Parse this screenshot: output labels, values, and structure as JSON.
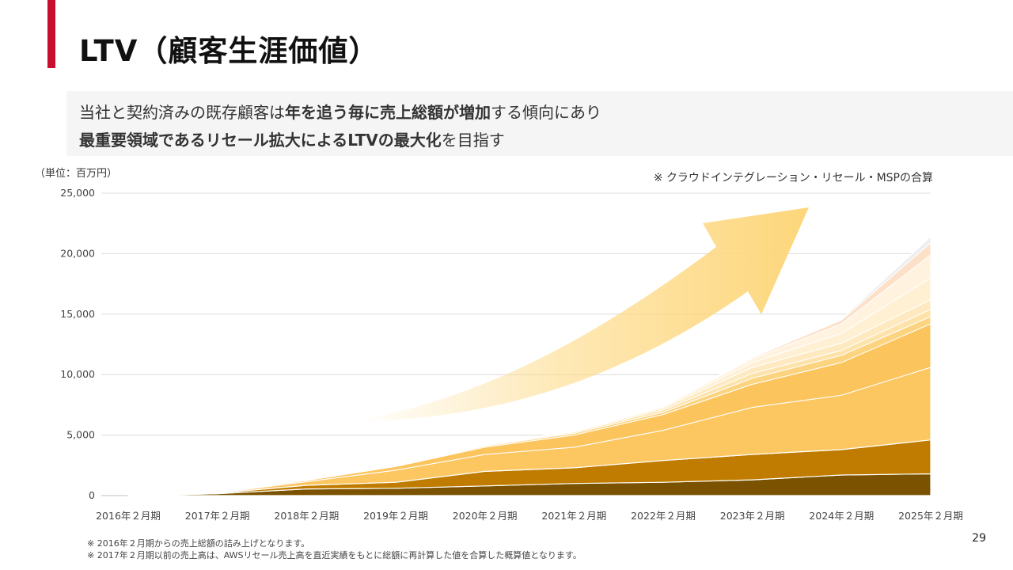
{
  "header": {
    "title": "LTV（顧客生涯価値）"
  },
  "lead": {
    "line1": [
      {
        "text": "当社と契約済みの既存顧客は",
        "bold": false
      },
      {
        "text": "年を追う毎に売上総額が増加",
        "bold": true
      },
      {
        "text": "する傾向にあり",
        "bold": false
      }
    ],
    "line2": [
      {
        "text": "最重要領域であるリセール拡大によるLTVの最大化",
        "bold": true
      },
      {
        "text": "を目指す",
        "bold": false
      }
    ]
  },
  "unit_label": "（単位：百万円）",
  "note_top": "※ クラウドインテグレーション・リセール・MSPの合算",
  "footnotes": {
    "note1": "※ 2016年２月期からの売上総額の詰み上げとなります。",
    "note2": "※ 2017年２月期以前の売上高は、AWSリセール売上高を直近実績をもとに総額に再計算した値を合算した概算値となります。"
  },
  "page_number": "29",
  "colors": {
    "accent": "#c8102e",
    "arrow": "#fdd67a"
  },
  "chart_data": {
    "type": "area",
    "stacked": true,
    "categories": [
      "2016年２月期",
      "2017年２月期",
      "2018年２月期",
      "2019年２月期",
      "2020年２月期",
      "2021年２月期",
      "2022年２月期",
      "2023年２月期",
      "2024年２月期",
      "2025年２月期"
    ],
    "ylim": [
      0,
      25000
    ],
    "yticks": [
      0,
      5000,
      10000,
      15000,
      20000,
      25000
    ],
    "ytick_labels": [
      "0",
      "5,000",
      "10,000",
      "15,000",
      "20,000",
      "25,000"
    ],
    "grid": true,
    "series": [
      {
        "color": "#7a5200",
        "values": [
          0,
          150,
          550,
          600,
          800,
          1000,
          1100,
          1300,
          1700,
          1800
        ]
      },
      {
        "color": "#c07c00",
        "values": [
          0,
          50,
          300,
          500,
          1200,
          1300,
          1800,
          2100,
          2100,
          2800
        ]
      },
      {
        "color": "#fcc661",
        "values": [
          0,
          20,
          300,
          1000,
          1400,
          1700,
          2500,
          3900,
          4500,
          6000
        ]
      },
      {
        "color": "#fcc45c",
        "values": [
          0,
          10,
          100,
          300,
          600,
          1000,
          1300,
          1900,
          2700,
          3600
        ]
      },
      {
        "color": "#fcd37f",
        "values": [
          0,
          5,
          30,
          50,
          100,
          150,
          200,
          500,
          600,
          600
        ]
      },
      {
        "color": "#fde3aa",
        "values": [
          0,
          0,
          10,
          20,
          50,
          100,
          200,
          400,
          400,
          600
        ]
      },
      {
        "color": "#fee9c0",
        "values": [
          0,
          0,
          0,
          10,
          20,
          50,
          150,
          500,
          600,
          800
        ]
      },
      {
        "color": "#fff0d4",
        "values": [
          0,
          0,
          0,
          0,
          10,
          30,
          100,
          400,
          800,
          1800
        ]
      },
      {
        "color": "#fff3df",
        "values": [
          0,
          0,
          0,
          0,
          0,
          10,
          50,
          300,
          800,
          1900
        ]
      },
      {
        "color": "#fde0c8",
        "values": [
          0,
          0,
          0,
          0,
          0,
          0,
          20,
          100,
          300,
          1000
        ]
      },
      {
        "color": "#eeeeee",
        "values": [
          0,
          0,
          0,
          0,
          0,
          0,
          0,
          50,
          100,
          500
        ]
      }
    ]
  }
}
